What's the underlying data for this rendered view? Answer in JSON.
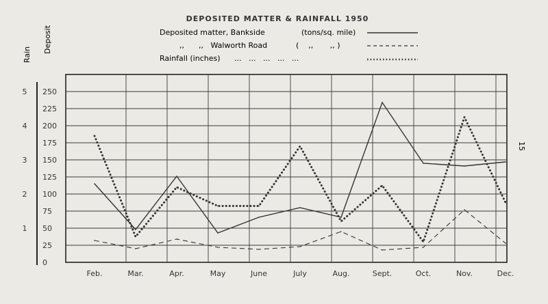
{
  "chart_data": {
    "type": "line",
    "title": "DEPOSITED MATTER & RAINFALL 1950",
    "page_number": "15",
    "axis_titles": {
      "rain": "Rain",
      "deposit": "Deposit"
    },
    "categories": [
      "Feb.",
      "Mar.",
      "Apr.",
      "May",
      "June",
      "July",
      "Aug.",
      "Sept.",
      "Oct.",
      "Nov.",
      "Dec."
    ],
    "deposit_ticks": [
      "0",
      "25",
      "50",
      "75",
      "100",
      "125",
      "150",
      "175",
      "200",
      "225",
      "250"
    ],
    "rain_ticks": [
      "1",
      "2",
      "3",
      "4",
      "5"
    ],
    "ylim": [
      0,
      250
    ],
    "rain_ylim": [
      0,
      5
    ],
    "legend": [
      {
        "label": "Deposited matter, Bankside",
        "unit": "(tons/sq. mile)",
        "style": "solid"
      },
      {
        "label": ",,      ,,   Walworth Road",
        "unit": "(    ,,       ,, )",
        "style": "dashed"
      },
      {
        "label": "Rainfall (inches)",
        "unit": "...   ...   ...   ...   ...",
        "style": "dotted"
      }
    ],
    "series": [
      {
        "name": "Deposited matter, Bankside",
        "axis": "deposit",
        "style": "solid",
        "values": [
          115,
          48,
          126,
          43,
          66,
          80,
          66,
          234,
          145,
          141,
          147
        ]
      },
      {
        "name": "Deposited matter, Walworth Road",
        "axis": "deposit",
        "style": "dashed",
        "values": [
          32,
          20,
          34,
          22,
          19,
          23,
          45,
          18,
          22,
          77,
          28
        ]
      },
      {
        "name": "Rainfall (inches)",
        "axis": "rain",
        "style": "dotted",
        "values": [
          3.7,
          0.75,
          2.2,
          1.65,
          1.65,
          3.4,
          1.2,
          2.25,
          0.6,
          4.25,
          1.75
        ]
      }
    ],
    "colors": {
      "line": "#333333",
      "grid": "#3a3a3a"
    }
  }
}
